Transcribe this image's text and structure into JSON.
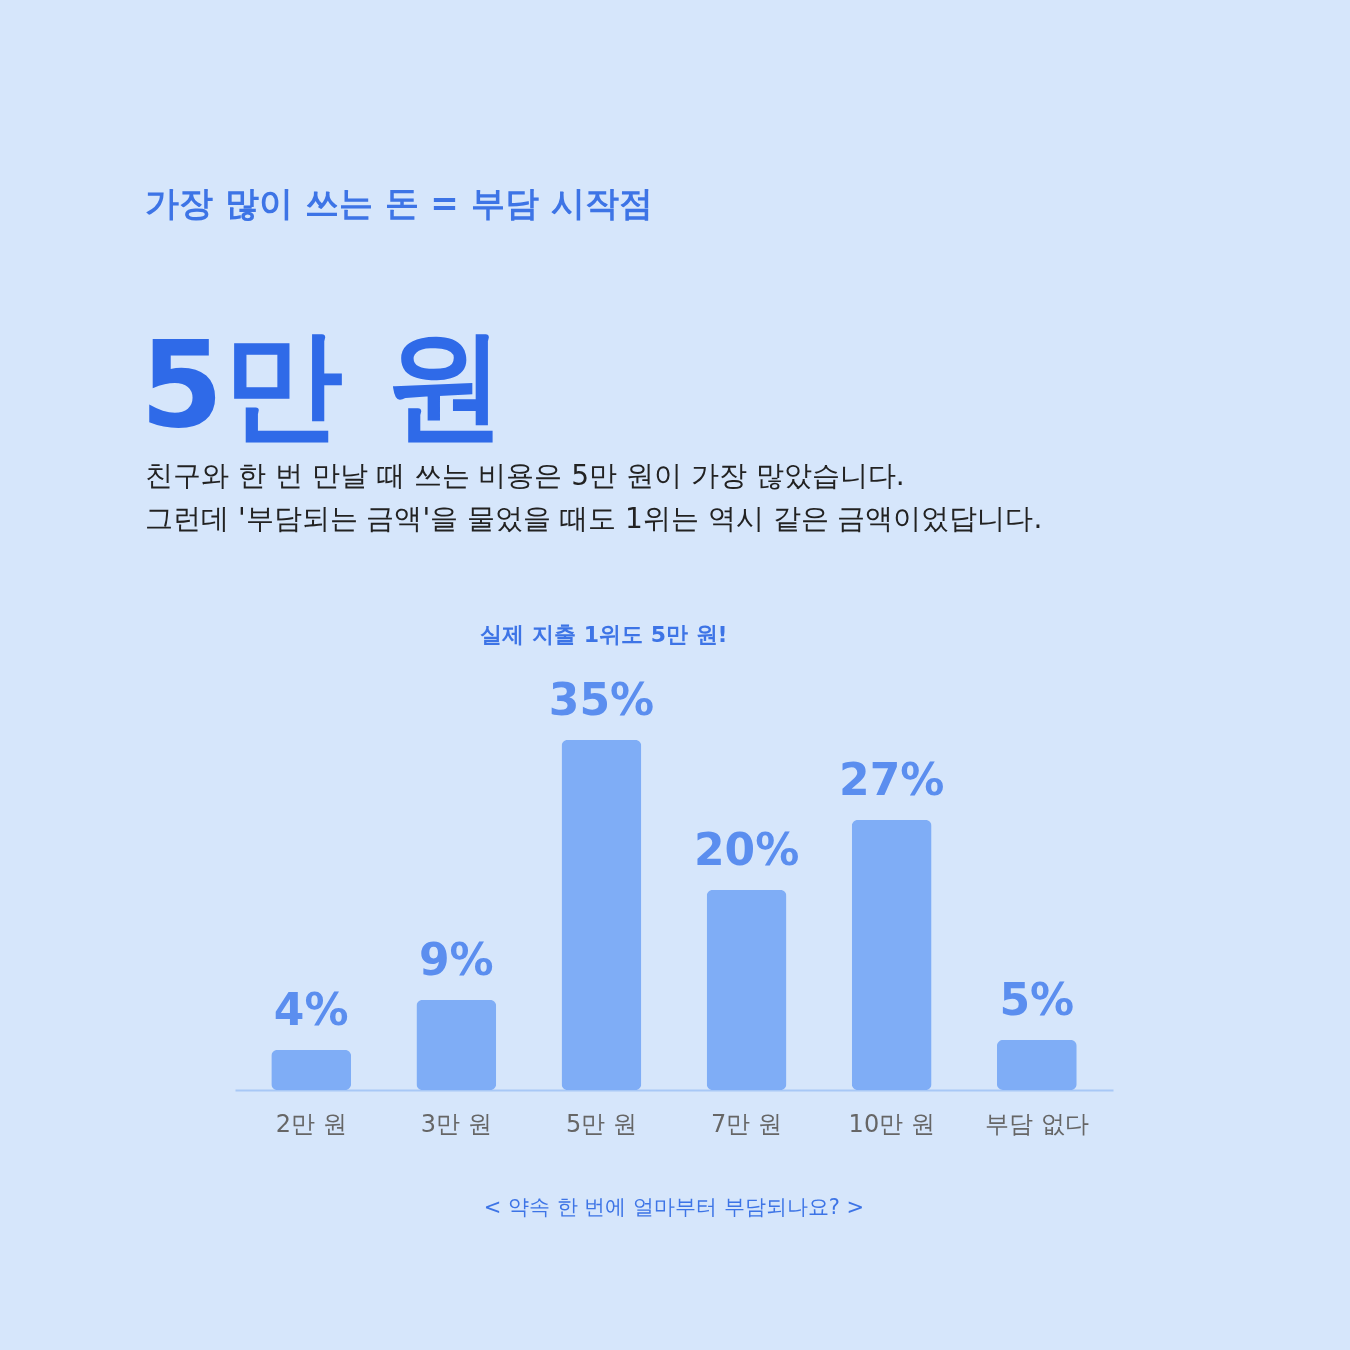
{
  "chart_data": {
    "type": "bar",
    "title": "가장 많이 쓰는 돈 = 부담 시작점",
    "subtitle": "5만 원",
    "annotations": [
      "친구와 한 번 만날 때 쓰는 비용은 5만 원이 가장 많았습니다.",
      "그런데 '부담되는 금액'을 물었을 때도 1위는 역시 같은 금액이었답니다.",
      "실제 지출 1위도 5만 원!",
      "< 약속 한 번에 얼마부터 부담되나요? >"
    ],
    "categories": [
      "2만 원",
      "3만 원",
      "5만 원",
      "7만 원",
      "10만 원",
      "부담 없다"
    ],
    "values": [
      4,
      9,
      35,
      20,
      27,
      5
    ],
    "colors": [
      "#7fadf6",
      "#7fadf6",
      "#7fadf6",
      "#7fadf6",
      "#7fadf6",
      "#7fadf6"
    ],
    "value_labels": [
      "4%",
      "9%",
      "35%",
      "20%",
      "27%",
      "5%"
    ],
    "grid": false
  }
}
